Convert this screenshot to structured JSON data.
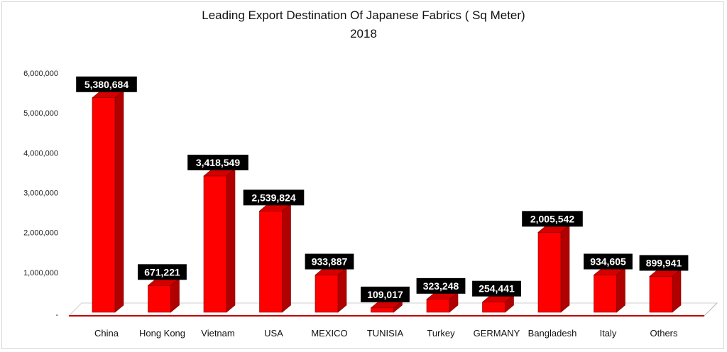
{
  "chart_data": {
    "type": "bar",
    "title": "Leading Export Destination Of Japanese Fabrics ( Sq Meter)",
    "subtitle": "2018",
    "categories": [
      "China",
      "Hong Kong",
      "Vietnam",
      "USA",
      "MEXICO",
      "TUNISIA",
      "Turkey",
      "GERMANY",
      "Bangladesh",
      "Italy",
      "Others"
    ],
    "values": [
      5380684,
      671221,
      3418549,
      2539824,
      933887,
      109017,
      323248,
      254441,
      2005542,
      934605,
      899941
    ],
    "data_labels": [
      "5,380,684",
      "671,221",
      "3,418,549",
      "2,539,824",
      "933,887",
      "109,017",
      "323,248",
      "254,441",
      "2,005,542",
      "934,605",
      "899,941"
    ],
    "yticks": [
      "-",
      "1,000,000",
      "2,000,000",
      "3,000,000",
      "4,000,000",
      "5,000,000",
      "6,000,000"
    ],
    "ylim": [
      0,
      6000000
    ],
    "grid": false,
    "legend": "none",
    "colors": {
      "bar_front": "#ff0000",
      "bar_side": "#b00000",
      "bar_top": "#d40000",
      "label_bg": "#000000",
      "label_text": "#ffffff",
      "floor_edge": "#c00000"
    }
  }
}
